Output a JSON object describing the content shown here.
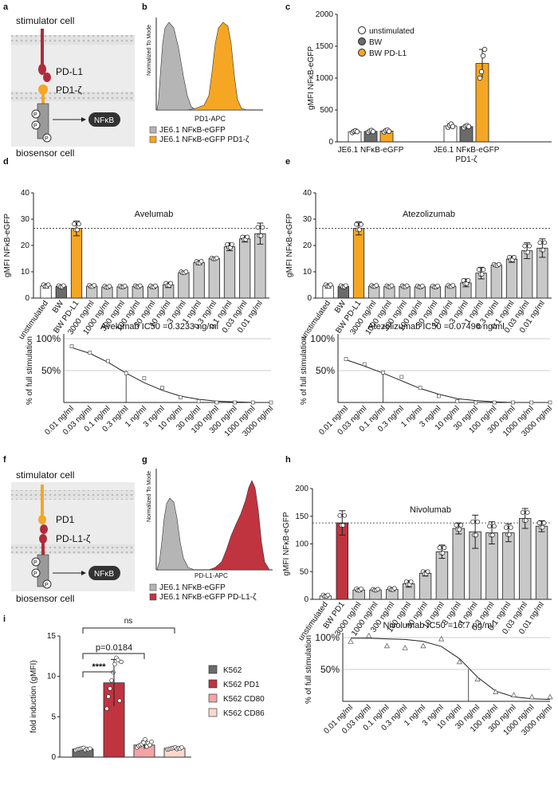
{
  "panel_letters": [
    "a",
    "b",
    "c",
    "d",
    "e",
    "f",
    "g",
    "h",
    "i"
  ],
  "panel_a": {
    "stimulator": "stimulator cell",
    "ligand": "PD-L1",
    "receptor": "PD1-ζ",
    "phospho": "P",
    "reporter": "NFκB",
    "biosensor": "biosensor cell"
  },
  "panel_f": {
    "stimulator": "stimulator cell",
    "ligand": "PD1",
    "receptor": "PD-L1-ζ",
    "phospho": "P",
    "reporter": "NFκB",
    "biosensor": "biosensor cell"
  },
  "panel_b": {
    "ylabel": "Normalized To Mode",
    "xlabel": "PD1-APC",
    "legend": [
      "JE6.1 NFκB-eGFP",
      "JE6.1 NFκB-eGFP PD1-ζ"
    ],
    "colors": [
      "#b5b5b5",
      "#f5a623"
    ]
  },
  "panel_g": {
    "ylabel": "Normalized To Mode",
    "xlabel": "PD-L1-APC",
    "legend": [
      "JE6.1 NFκB-eGFP",
      "JE6.1 NFκB-eGFP PD-L1-ζ"
    ],
    "colors": [
      "#b5b5b5",
      "#c0343f"
    ]
  },
  "conc_desc": [
    "3000 ng/ml",
    "1000 ng/ml",
    "300 ng/ml",
    "100 ng/ml",
    "30 ng/ml",
    "10 ng/ml",
    "3 ng/ml",
    "1 ng/ml",
    "0.3 ng/ml",
    "0.1 ng/ml",
    "0.03 ng/ml",
    "0.01 ng/ml"
  ],
  "conc_asc": [
    "0.01 ng/ml",
    "0.03 ng/ml",
    "0.1 ng/ml",
    "0.3 ng/ml",
    "1 ng/ml",
    "3 ng/ml",
    "10 ng/ml",
    "30 ng/ml",
    "100 ng/ml",
    "300 ng/ml",
    "1000 ng/ml",
    "3000 ng/ml"
  ],
  "chart_data": [
    {
      "id": "c",
      "type": "bar",
      "ylabel": "gMFI NFκB-eGFP",
      "ylim": [
        0,
        2000
      ],
      "yticks": [
        0,
        500,
        1000,
        1500,
        2000
      ],
      "groups": [
        "JE6.1 NFκB-eGFP",
        "JE6.1 NFκB-eGFP",
        "PD1-ζ"
      ],
      "series": [
        {
          "name": "unstimulated",
          "color": "#ffffff",
          "values": [
            160,
            250
          ]
        },
        {
          "name": "BW",
          "color": "#6b6b6b",
          "values": [
            165,
            240
          ]
        },
        {
          "name": "BW PD-L1",
          "color": "#f5a623",
          "values": [
            170,
            1230
          ]
        }
      ],
      "errors": [
        20,
        15,
        25,
        30,
        20,
        220
      ],
      "points": [
        [
          145,
          165,
          175,
          160
        ],
        [
          150,
          170,
          180,
          160
        ],
        [
          155,
          175,
          185,
          165
        ],
        [
          230,
          260,
          280,
          240
        ],
        [
          220,
          245,
          255,
          240
        ],
        [
          1000,
          1100,
          1350,
          1450
        ]
      ]
    },
    {
      "id": "d",
      "type": "bar",
      "title": "Avelumab",
      "ylabel": "gMFI NFκB-eGFP",
      "ylim": [
        0,
        40
      ],
      "yticks": [
        0,
        10,
        20,
        30,
        40
      ],
      "ref": 26.5,
      "categories": [
        "unstimulated",
        "BW",
        "BW PD-L1",
        "3000 ng/ml",
        "1000 ng/ml",
        "300 ng/ml",
        "100 ng/ml",
        "30 ng/ml",
        "10 ng/ml",
        "3 ng/ml",
        "1 ng/ml",
        "0.3 ng/ml",
        "0.1 ng/ml",
        "0.03 ng/ml",
        "0.01 ng/ml"
      ],
      "values": [
        4.6,
        4.4,
        26.5,
        4.5,
        4.2,
        4.3,
        4.4,
        4.3,
        5.0,
        9.7,
        13.5,
        15.0,
        19.5,
        22.5,
        24.5
      ],
      "errors": [
        0.8,
        0.6,
        2.8,
        0.6,
        0.5,
        0.5,
        0.5,
        0.6,
        1.0,
        0.5,
        0.8,
        0.4,
        1.5,
        1.2,
        4.0
      ]
    },
    {
      "id": "e",
      "type": "bar",
      "title": "Atezolizumab",
      "ylabel": "gMFI NFκB-eGFP",
      "ylim": [
        0,
        40
      ],
      "yticks": [
        0,
        10,
        20,
        30,
        40
      ],
      "ref": 26.5,
      "categories": [
        "unstimulated",
        "BW",
        "BW PD-L1",
        "3000 ng/ml",
        "1000 ng/ml",
        "300 ng/ml",
        "100 ng/ml",
        "30 ng/ml",
        "10 ng/ml",
        "3 ng/ml",
        "1 ng/ml",
        "0.3 ng/ml",
        "0.1 ng/ml",
        "0.03 ng/ml",
        "0.01 ng/ml"
      ],
      "values": [
        4.6,
        4.4,
        26.5,
        4.5,
        4.4,
        4.4,
        4.3,
        4.3,
        4.5,
        5.8,
        9.5,
        12.5,
        14.8,
        18.0,
        19.0
      ],
      "errors": [
        0.8,
        0.6,
        2.5,
        0.5,
        0.5,
        0.5,
        0.5,
        0.5,
        0.6,
        1.5,
        2.2,
        0.5,
        1.2,
        3.0,
        3.5
      ]
    },
    {
      "id": "d2",
      "type": "scatter",
      "title": "Avelumab IC50 =0.3233 ng/ml",
      "ylabel": "% of full stimulation",
      "yticks": [
        "50%",
        "100%"
      ],
      "ic50_index": 3,
      "x": [
        "0.01 ng/ml",
        "0.03 ng/ml",
        "0.1 ng/ml",
        "0.3 ng/ml",
        "1 ng/ml",
        "3 ng/ml",
        "10 ng/ml",
        "30 ng/ml",
        "100 ng/ml",
        "300 ng/ml",
        "1000 ng/ml",
        "3000 ng/ml"
      ],
      "y": [
        0.88,
        0.78,
        0.65,
        0.46,
        0.38,
        0.23,
        0.08,
        0.02,
        0.0,
        0.0,
        0.0,
        0.0
      ],
      "fit": [
        0.86,
        0.77,
        0.63,
        0.46,
        0.31,
        0.19,
        0.1,
        0.05,
        0.02,
        0.01,
        0.0,
        0.0
      ]
    },
    {
      "id": "e2",
      "type": "scatter",
      "title": "Atezolizumab IC50 =0.07496 ng/ml",
      "ylabel": "% of full stimulation",
      "yticks": [
        "50%",
        "100%"
      ],
      "ic50_index": 2,
      "x": [
        "0.01 ng/ml",
        "0.03 ng/ml",
        "0.1 ng/ml",
        "0.3 ng/ml",
        "1 ng/ml",
        "3 ng/ml",
        "10 ng/ml",
        "30 ng/ml",
        "100 ng/ml",
        "300 ng/ml",
        "1000 ng/ml",
        "3000 ng/ml"
      ],
      "y": [
        0.68,
        0.6,
        0.47,
        0.4,
        0.23,
        0.1,
        0.02,
        0.0,
        0.0,
        0.0,
        0.0,
        0.0
      ],
      "fit": [
        0.67,
        0.57,
        0.46,
        0.34,
        0.22,
        0.13,
        0.06,
        0.03,
        0.01,
        0.0,
        0.0,
        0.0
      ]
    },
    {
      "id": "h",
      "type": "bar",
      "title": "Nivolumab",
      "ylabel": "gMFI NFκB-eGFP",
      "ylim": [
        0,
        200
      ],
      "yticks": [
        0,
        50,
        100,
        150,
        200
      ],
      "ref": 138,
      "categories": [
        "unstimulated",
        "BW PD1",
        "3000 ng/ml",
        "1000 ng/ml",
        "300 ng/ml",
        "100 ng/ml",
        "30 ng/ml",
        "10 ng/ml",
        "3 ng/ml",
        "1 ng/ml",
        "0.3 ng/ml",
        "0.1 ng/ml",
        "0.03 ng/ml",
        "0.01 ng/ml"
      ],
      "values": [
        6,
        138,
        17,
        17,
        18,
        28,
        47,
        86,
        128,
        122,
        120,
        120,
        146,
        132
      ],
      "errors": [
        3,
        22,
        3,
        2,
        3,
        6,
        5,
        12,
        10,
        30,
        20,
        16,
        18,
        10
      ]
    },
    {
      "id": "h2",
      "type": "scatter",
      "title": "Nivolumab IC50 =16.7 ng/ml",
      "ylabel": "% of full stimulation",
      "yticks": [
        "50%",
        "100%"
      ],
      "ic50_index": 6.5,
      "x": [
        "0.01 ng/ml",
        "0.03 ng/ml",
        "0.1 ng/ml",
        "0.3 ng/ml",
        "1 ng/ml",
        "3 ng/ml",
        "10 ng/ml",
        "30 ng/ml",
        "100 ng/ml",
        "300 ng/ml",
        "1000 ng/ml",
        "3000 ng/ml"
      ],
      "y": [
        0.94,
        1.03,
        0.87,
        0.84,
        0.87,
        0.98,
        0.62,
        0.35,
        0.15,
        0.1,
        0.07,
        0.07
      ],
      "fit": [
        0.99,
        0.99,
        0.98,
        0.97,
        0.94,
        0.86,
        0.67,
        0.38,
        0.16,
        0.07,
        0.04,
        0.03
      ]
    },
    {
      "id": "i",
      "type": "bar",
      "ylabel": "fold induction (gMFI)",
      "ylim": [
        0,
        15
      ],
      "yticks": [
        0,
        5,
        10,
        15
      ],
      "categories": [
        "K562",
        "K562 PD1",
        "K562 CD80",
        "K562 CD86"
      ],
      "values": [
        1.0,
        9.2,
        1.5,
        1.1
      ],
      "errors": [
        0.15,
        2.9,
        0.5,
        0.2
      ],
      "colors": [
        "#6b6b6b",
        "#c0343f",
        "#f4a3a8",
        "#fbd8cc"
      ],
      "annotations": [
        "****",
        "p=0.0184",
        "ns"
      ]
    }
  ]
}
